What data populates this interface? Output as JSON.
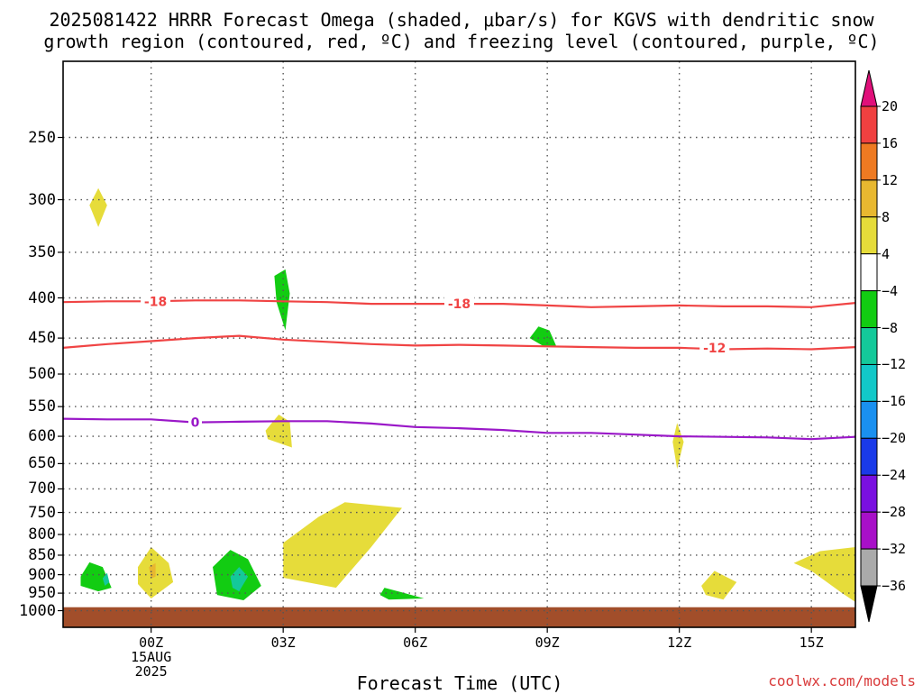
{
  "title_line1": "2025081422 HRRR Forecast Omega (shaded, μbar/s) for KGVS with dendritic snow",
  "title_line2": "growth region (contoured, red, ºC) and freezing level (contoured, purple, ºC)",
  "x_axis_title": "Forecast Time (UTC)",
  "credit": "coolwx.com/models",
  "colors": {
    "dgz": "#f04444",
    "freezing": "#9a18c8",
    "ground": "#a24e2a",
    "grid": "#555555"
  },
  "chart_data": {
    "type": "heatmap",
    "title": "2025081422 HRRR Forecast Omega (shaded, μbar/s) for KGVS with dendritic snow growth region (contoured, red, ºC) and freezing level (contoured, purple, ºC)",
    "xlabel": "Forecast Time (UTC)",
    "ylabel": "",
    "y_scale": "log-pressure, inverted",
    "xlim": [
      "2025-08-14T22Z",
      "2025-08-15T16Z"
    ],
    "ylim_hPa": [
      1050,
      200
    ],
    "x_ticks": [
      {
        "time": "2025-08-15T00Z",
        "label": "00Z",
        "sub1": "15AUG",
        "sub2": "2025"
      },
      {
        "time": "2025-08-15T03Z",
        "label": "03Z"
      },
      {
        "time": "2025-08-15T06Z",
        "label": "06Z"
      },
      {
        "time": "2025-08-15T09Z",
        "label": "09Z"
      },
      {
        "time": "2025-08-15T12Z",
        "label": "12Z"
      },
      {
        "time": "2025-08-15T15Z",
        "label": "15Z"
      }
    ],
    "y_ticks": [
      250,
      300,
      350,
      400,
      450,
      500,
      550,
      600,
      650,
      700,
      750,
      800,
      850,
      900,
      950,
      1000
    ],
    "grid": true,
    "colorbar": {
      "label_values": [
        20,
        16,
        12,
        8,
        4,
        -4,
        -8,
        -12,
        -16,
        -20,
        -24,
        -28,
        -32,
        -36
      ],
      "bins": [
        {
          "range": [
            20,
            null
          ],
          "color": "#e0107a"
        },
        {
          "range": [
            16,
            20
          ],
          "color": "#f04040"
        },
        {
          "range": [
            12,
            16
          ],
          "color": "#ee7a22"
        },
        {
          "range": [
            8,
            12
          ],
          "color": "#e8b830"
        },
        {
          "range": [
            4,
            8
          ],
          "color": "#e6dc3a"
        },
        {
          "range": [
            -4,
            4
          ],
          "color": "#ffffff"
        },
        {
          "range": [
            -8,
            -4
          ],
          "color": "#12cc12"
        },
        {
          "range": [
            -12,
            -8
          ],
          "color": "#14c99a"
        },
        {
          "range": [
            -16,
            -12
          ],
          "color": "#12c8c8"
        },
        {
          "range": [
            -20,
            -16
          ],
          "color": "#1a90f0"
        },
        {
          "range": [
            -24,
            -20
          ],
          "color": "#1a3ae8"
        },
        {
          "range": [
            -28,
            -24
          ],
          "color": "#7a10e0"
        },
        {
          "range": [
            -32,
            -28
          ],
          "color": "#a810c8"
        },
        {
          "range": [
            -36,
            -32
          ],
          "color": "#aaaaaa"
        },
        {
          "range": [
            null,
            -36
          ],
          "color": "#000000"
        }
      ]
    },
    "contours": [
      {
        "name": "",
        "level": -18,
        "color": "#f04444",
        "points": [
          [
            -2,
            405
          ],
          [
            -1,
            404
          ],
          [
            0,
            404
          ],
          [
            1,
            403
          ],
          [
            2,
            403
          ],
          [
            3,
            404
          ],
          [
            4,
            405
          ],
          [
            5,
            407
          ],
          [
            6,
            407
          ],
          [
            7,
            407
          ],
          [
            8,
            407
          ],
          [
            9,
            409
          ],
          [
            10,
            411
          ],
          [
            11,
            410
          ],
          [
            12,
            409
          ],
          [
            13,
            410
          ],
          [
            14,
            410
          ],
          [
            15,
            411
          ],
          [
            16,
            406
          ]
        ],
        "labels": [
          {
            "time": 0.1,
            "hPa": 404,
            "text": "-18"
          },
          {
            "time": 7.0,
            "hPa": 407,
            "text": "-18"
          }
        ]
      },
      {
        "name": "",
        "level": -12,
        "color": "#f04444",
        "points": [
          [
            -2,
            463
          ],
          [
            -1,
            458
          ],
          [
            0,
            454
          ],
          [
            1,
            450
          ],
          [
            2,
            447
          ],
          [
            3,
            452
          ],
          [
            4,
            455
          ],
          [
            5,
            458
          ],
          [
            6,
            460
          ],
          [
            7,
            459
          ],
          [
            8,
            460
          ],
          [
            9,
            461
          ],
          [
            10,
            462
          ],
          [
            11,
            463
          ],
          [
            12,
            463
          ],
          [
            13,
            465
          ],
          [
            14,
            464
          ],
          [
            15,
            465
          ],
          [
            16,
            462
          ]
        ],
        "labels": [
          {
            "time": 12.8,
            "hPa": 463,
            "text": "-12"
          }
        ]
      },
      {
        "name": "",
        "level": 0,
        "color": "#9a18c8",
        "points": [
          [
            -2,
            570
          ],
          [
            -1,
            571
          ],
          [
            0,
            571
          ],
          [
            1,
            576
          ],
          [
            2,
            575
          ],
          [
            3,
            574
          ],
          [
            4,
            574
          ],
          [
            5,
            578
          ],
          [
            6,
            584
          ],
          [
            7,
            586
          ],
          [
            8,
            589
          ],
          [
            9,
            594
          ],
          [
            10,
            594
          ],
          [
            11,
            597
          ],
          [
            12,
            600
          ],
          [
            13,
            601
          ],
          [
            14,
            602
          ],
          [
            15,
            605
          ],
          [
            16,
            601
          ]
        ],
        "labels": [
          {
            "time": 1.0,
            "hPa": 576,
            "text": "0"
          }
        ]
      }
    ],
    "omega_regions": [
      {
        "value": 6,
        "points": [
          [
            -1.2,
            290
          ],
          [
            -1.0,
            305
          ],
          [
            -1.2,
            325
          ],
          [
            -1.4,
            305
          ]
        ]
      },
      {
        "value": -6,
        "points": [
          [
            2.8,
            375
          ],
          [
            3.05,
            368
          ],
          [
            3.15,
            395
          ],
          [
            3.05,
            440
          ],
          [
            2.85,
            405
          ]
        ]
      },
      {
        "value": -6,
        "points": [
          [
            8.6,
            450
          ],
          [
            8.8,
            435
          ],
          [
            9.05,
            440
          ],
          [
            9.2,
            460
          ],
          [
            8.95,
            462
          ]
        ]
      },
      {
        "value": 6,
        "points": [
          [
            2.6,
            590
          ],
          [
            2.9,
            563
          ],
          [
            3.15,
            575
          ],
          [
            3.2,
            620
          ],
          [
            2.65,
            605
          ]
        ]
      },
      {
        "value": 6,
        "points": [
          [
            11.85,
            610
          ],
          [
            11.95,
            577
          ],
          [
            12.1,
            610
          ],
          [
            11.95,
            660
          ]
        ]
      },
      {
        "value": 6,
        "points": [
          [
            3.0,
            820
          ],
          [
            3.8,
            760
          ],
          [
            4.4,
            728
          ],
          [
            5.7,
            740
          ],
          [
            5.0,
            830
          ],
          [
            4.2,
            935
          ],
          [
            3.0,
            908
          ]
        ]
      },
      {
        "value": 6,
        "points": [
          [
            -0.3,
            880
          ],
          [
            0,
            830
          ],
          [
            0.4,
            870
          ],
          [
            0.5,
            920
          ],
          [
            0,
            965
          ],
          [
            -0.3,
            925
          ]
        ]
      },
      {
        "value": 6,
        "points": [
          [
            12.5,
            930
          ],
          [
            12.8,
            890
          ],
          [
            13.3,
            920
          ],
          [
            13.0,
            968
          ],
          [
            12.6,
            955
          ]
        ]
      },
      {
        "value": 6,
        "points": [
          [
            14.6,
            870
          ],
          [
            15.2,
            840
          ],
          [
            16,
            830
          ],
          [
            16,
            975
          ],
          [
            15.7,
            950
          ],
          [
            15.0,
            890
          ]
        ]
      },
      {
        "value": -6,
        "points": [
          [
            -1.6,
            905
          ],
          [
            -1.4,
            868
          ],
          [
            -1.1,
            880
          ],
          [
            -0.9,
            935
          ],
          [
            -1.2,
            945
          ],
          [
            -1.6,
            930
          ]
        ]
      },
      {
        "value": -6,
        "points": [
          [
            1.4,
            880
          ],
          [
            1.8,
            837
          ],
          [
            2.2,
            860
          ],
          [
            2.5,
            930
          ],
          [
            2.1,
            970
          ],
          [
            1.5,
            955
          ]
        ]
      },
      {
        "value": -6,
        "points": [
          [
            5.2,
            955
          ],
          [
            5.3,
            935
          ],
          [
            5.7,
            948
          ],
          [
            6.2,
            965
          ],
          [
            5.4,
            968
          ]
        ]
      },
      {
        "value": 10,
        "points": [
          [
            -0.05,
            880
          ],
          [
            0.1,
            870
          ],
          [
            0.1,
            905
          ],
          [
            0,
            910
          ]
        ]
      },
      {
        "value": -10,
        "points": [
          [
            -1.1,
            910
          ],
          [
            -1.0,
            895
          ],
          [
            -0.95,
            920
          ],
          [
            -1.05,
            930
          ]
        ]
      },
      {
        "value": -10,
        "points": [
          [
            1.8,
            905
          ],
          [
            2.0,
            880
          ],
          [
            2.2,
            905
          ],
          [
            2.0,
            945
          ],
          [
            1.85,
            935
          ]
        ]
      }
    ],
    "ground_level_hPa": 990
  }
}
